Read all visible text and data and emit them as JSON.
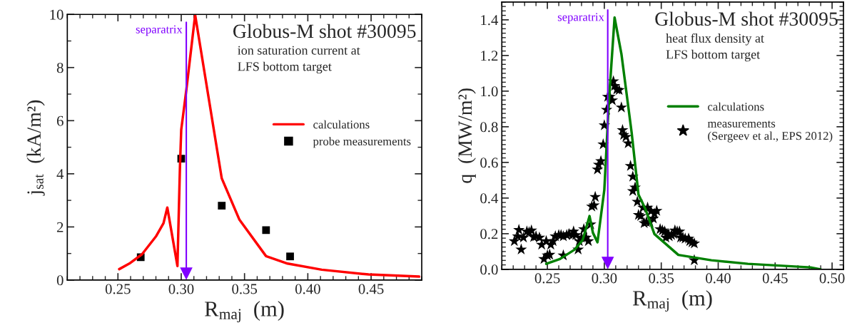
{
  "chart_data": [
    {
      "type": "line",
      "title": "Globus-M shot #30095",
      "annotations": [
        "ion saturation current at\nLFS bottom target"
      ],
      "xlabel": "R$_{maj}$  (m)",
      "ylabel": "j$_{sat}$  (kA/m²)",
      "xlim": [
        0.21,
        0.49
      ],
      "ylim": [
        0,
        10
      ],
      "xticks": [
        {
          "value": 0.25,
          "label": "0.25"
        },
        {
          "value": 0.3,
          "label": "0.30"
        },
        {
          "value": 0.35,
          "label": "0.35"
        },
        {
          "value": 0.4,
          "label": "0.40"
        },
        {
          "value": 0.45,
          "label": "0.45"
        }
      ],
      "yticks": [
        0,
        2,
        4,
        6,
        8,
        10
      ],
      "legend": "right",
      "ref_lines": [
        {
          "axis": "x",
          "value": 0.304,
          "label": "separatrix",
          "color": "#8000ff"
        }
      ],
      "series": [
        {
          "name": "calculations",
          "type": "line",
          "color": "#ff0000",
          "marker": "none",
          "x": [
            0.251,
            0.259,
            0.269,
            0.28,
            0.286,
            0.289,
            0.297,
            0.299,
            0.3,
            0.304,
            0.311,
            0.332,
            0.346,
            0.367,
            0.384,
            0.411,
            0.448,
            0.488
          ],
          "values": [
            0.41,
            0.62,
            0.97,
            1.64,
            2.14,
            2.73,
            0.53,
            4.28,
            5.66,
            7.14,
            9.98,
            3.83,
            2.27,
            0.9,
            0.62,
            0.39,
            0.21,
            0.13
          ]
        },
        {
          "name": "probe measurements",
          "type": "scatter",
          "color": "#000000",
          "marker": "square",
          "x": [
            0.268,
            0.3,
            0.332,
            0.367,
            0.386
          ],
          "values": [
            0.86,
            4.57,
            2.8,
            1.88,
            0.89
          ]
        }
      ]
    },
    {
      "type": "line",
      "title": "Globus-M shot #30095",
      "annotations": [
        "heat flux density at\nLFS bottom target"
      ],
      "xlabel": "R$_{maj}$  (m)",
      "ylabel": "q  (MW/m²)",
      "xlim": [
        0.21,
        0.51
      ],
      "ylim": [
        0,
        1.5
      ],
      "xticks": [
        {
          "value": 0.25,
          "label": "0.25"
        },
        {
          "value": 0.3,
          "label": "0.30"
        },
        {
          "value": 0.35,
          "label": "0.35"
        },
        {
          "value": 0.4,
          "label": "0.40"
        },
        {
          "value": 0.45,
          "label": "0.45"
        },
        {
          "value": 0.5,
          "label": "0.50"
        }
      ],
      "yticks": [
        {
          "value": 0,
          "label": "0.0"
        },
        {
          "value": 0.2,
          "label": "0.2"
        },
        {
          "value": 0.4,
          "label": "0.4"
        },
        {
          "value": 0.6,
          "label": "0.6"
        },
        {
          "value": 0.8,
          "label": "0.8"
        },
        {
          "value": 1.0,
          "label": "1.0"
        },
        {
          "value": 1.2,
          "label": "1.2"
        },
        {
          "value": 1.4,
          "label": "1.4"
        }
      ],
      "legend": "right",
      "ref_lines": [
        {
          "axis": "x",
          "value": 0.303,
          "label": "separatrix",
          "color": "#8000ff"
        }
      ],
      "series": [
        {
          "name": "calculations",
          "type": "line",
          "color": "#008000",
          "marker": "none",
          "x": [
            0.249,
            0.261,
            0.274,
            0.281,
            0.287,
            0.29,
            0.294,
            0.3,
            0.304,
            0.309,
            0.315,
            0.324,
            0.33,
            0.336,
            0.344,
            0.365,
            0.394,
            0.426,
            0.481,
            0.49
          ],
          "values": [
            0.031,
            0.058,
            0.111,
            0.165,
            0.299,
            0.205,
            0.152,
            0.446,
            0.942,
            1.413,
            1.209,
            0.767,
            0.419,
            0.339,
            0.198,
            0.081,
            0.051,
            0.031,
            0.011,
            0.0
          ]
        },
        {
          "name": "measurements\n(Sergeev et al., EPS 2012)",
          "type": "scatter",
          "color": "#000000",
          "marker": "star",
          "x": [
            0.221,
            0.224,
            0.225,
            0.227,
            0.229,
            0.232,
            0.234,
            0.236,
            0.238,
            0.24,
            0.243,
            0.245,
            0.247,
            0.249,
            0.25,
            0.252,
            0.253,
            0.255,
            0.257,
            0.26,
            0.262,
            0.264,
            0.264,
            0.267,
            0.269,
            0.272,
            0.273,
            0.275,
            0.277,
            0.278,
            0.28,
            0.282,
            0.284,
            0.286,
            0.288,
            0.289,
            0.291,
            0.292,
            0.294,
            0.295,
            0.297,
            0.299,
            0.3,
            0.302,
            0.303,
            0.305,
            0.307,
            0.308,
            0.309,
            0.311,
            0.313,
            0.315,
            0.316,
            0.317,
            0.319,
            0.321,
            0.323,
            0.325,
            0.325,
            0.327,
            0.329,
            0.33,
            0.332,
            0.334,
            0.335,
            0.337,
            0.338,
            0.34,
            0.341,
            0.343,
            0.344,
            0.346,
            0.349,
            0.351,
            0.353,
            0.354,
            0.356,
            0.357,
            0.359,
            0.361,
            0.362,
            0.364,
            0.366,
            0.367,
            0.369,
            0.371,
            0.374,
            0.375,
            0.377,
            0.379,
            0.379
          ],
          "values": [
            0.158,
            0.185,
            0.221,
            0.111,
            0.178,
            0.212,
            0.208,
            0.218,
            0.181,
            0.185,
            0.178,
            0.138,
            0.058,
            0.158,
            0.078,
            0.082,
            0.138,
            0.158,
            0.185,
            0.192,
            0.192,
            0.078,
            0.185,
            0.192,
            0.198,
            0.192,
            0.212,
            0.192,
            0.111,
            0.158,
            0.178,
            0.225,
            0.178,
            0.158,
            0.252,
            0.352,
            0.359,
            0.406,
            0.56,
            0.587,
            0.607,
            0.701,
            0.808,
            0.895,
            0.968,
            0.968,
            0.948,
            1.055,
            1.029,
            1.009,
            1.006,
            0.908,
            0.781,
            0.754,
            0.743,
            0.707,
            0.58,
            0.52,
            0.439,
            0.459,
            0.379,
            0.305,
            0.299,
            0.346,
            0.259,
            0.265,
            0.346,
            0.265,
            0.326,
            0.285,
            0.312,
            0.328,
            0.225,
            0.218,
            0.212,
            0.178,
            0.198,
            0.185,
            0.192,
            0.198,
            0.218,
            0.212,
            0.212,
            0.178,
            0.178,
            0.172,
            0.172,
            0.158,
            0.151,
            0.145,
            0.051
          ]
        }
      ]
    }
  ]
}
